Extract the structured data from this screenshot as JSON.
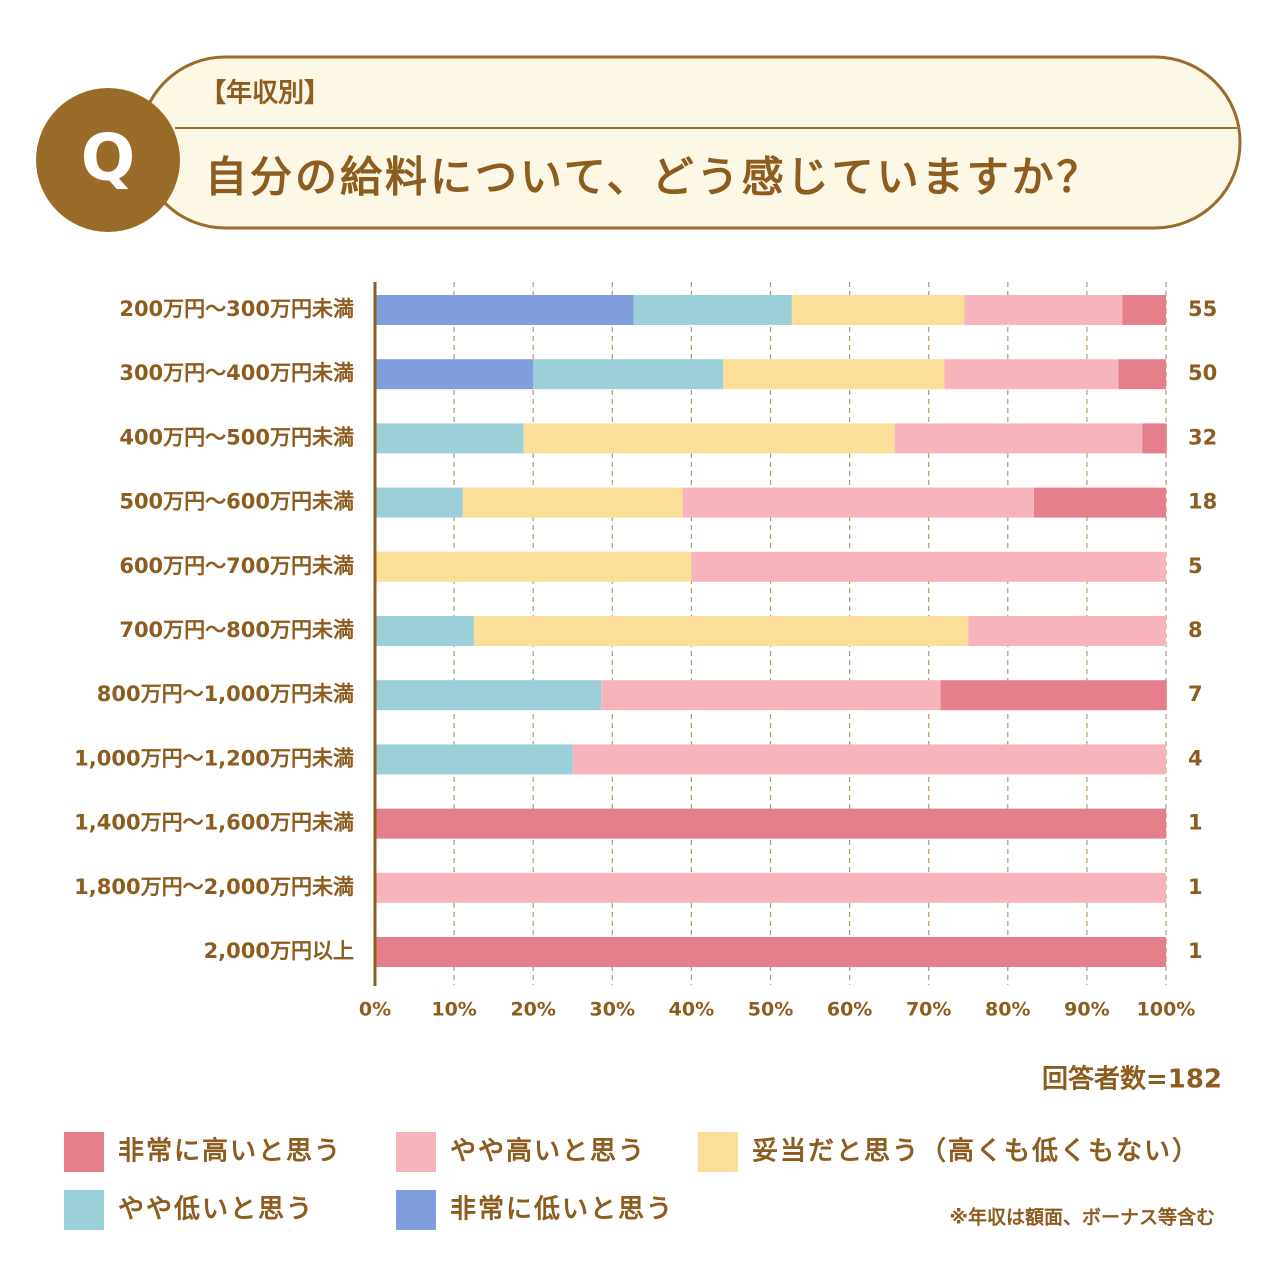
{
  "header": {
    "badge": "Q",
    "tag": "【年収別】",
    "title": "自分の給料について、どう感じていますか？"
  },
  "chart_data": {
    "type": "stacked-bar",
    "categories": [
      "200万円〜300万円未満",
      "300万円〜400万円未満",
      "400万円〜500万円未満",
      "500万円〜600万円未満",
      "600万円〜700万円未満",
      "700万円〜800万円未満",
      "800万円〜1,000万円未満",
      "1,000万円〜1,200万円未満",
      "1,400万円〜1,600万円未満",
      "1,800万円〜2,000万円未満",
      "2,000万円以上"
    ],
    "series": [
      {
        "name": "非常に低いと思う",
        "color": "#7f9fdc",
        "values": [
          32.7,
          20,
          0,
          0,
          0,
          0,
          0,
          0,
          0,
          0,
          0
        ]
      },
      {
        "name": "やや低いと思う",
        "color": "#9bd0d8",
        "values": [
          20.0,
          24,
          18.8,
          11.1,
          0,
          12.5,
          28.6,
          25,
          0,
          0,
          0
        ]
      },
      {
        "name": "妥当だと思う（高くも低くもない）",
        "color": "#fbdf98",
        "values": [
          21.8,
          28,
          46.9,
          27.8,
          40,
          62.5,
          0,
          0,
          0,
          0,
          0
        ]
      },
      {
        "name": "やや高いと思う",
        "color": "#f8b4bc",
        "values": [
          20.0,
          22,
          31.3,
          44.4,
          60,
          25,
          42.9,
          75,
          0,
          100,
          0
        ]
      },
      {
        "name": "非常に高いと思う",
        "color": "#e57f8c",
        "values": [
          5.5,
          6,
          3.1,
          16.7,
          0,
          0,
          28.6,
          0,
          100,
          0,
          100
        ]
      }
    ],
    "counts": [
      55,
      50,
      32,
      18,
      5,
      8,
      7,
      4,
      1,
      1,
      1
    ],
    "xlim": [
      0,
      100
    ],
    "xticks": [
      {
        "value": 0,
        "label": "0%"
      },
      {
        "value": 10,
        "label": "10%"
      },
      {
        "value": 20,
        "label": "20%"
      },
      {
        "value": 30,
        "label": "30%"
      },
      {
        "value": 40,
        "label": "40%"
      },
      {
        "value": 50,
        "label": "50%"
      },
      {
        "value": 60,
        "label": "60%"
      },
      {
        "value": 70,
        "label": "70%"
      },
      {
        "value": 80,
        "label": "80%"
      },
      {
        "value": 90,
        "label": "90%"
      },
      {
        "value": 100,
        "label": "100%"
      }
    ],
    "grid": true,
    "respondents": "回答者数=182",
    "note": "※年収は額面、ボーナス等含む"
  }
}
